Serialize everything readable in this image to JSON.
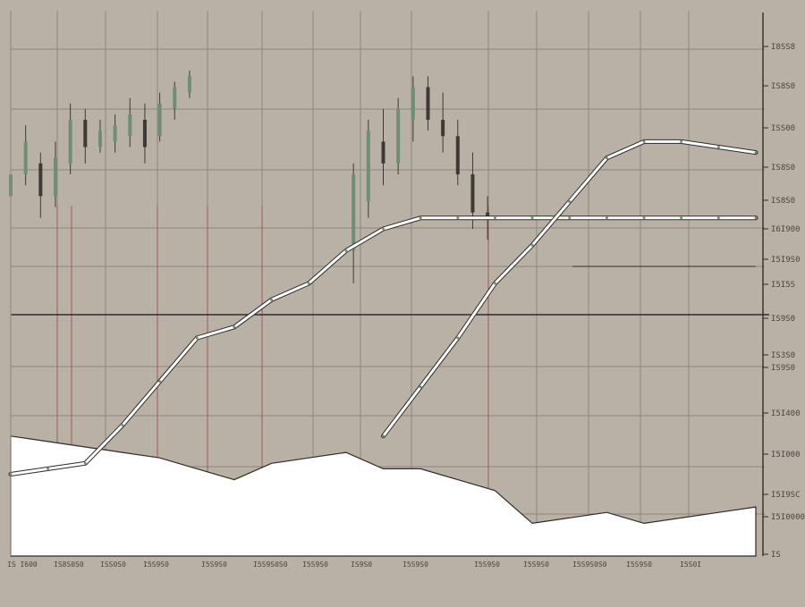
{
  "colors": {
    "background": "#b9b1a6",
    "grid": "#8f877d",
    "red_grid": "#9c5a55",
    "candle": "#3d3a36",
    "candle_up": "#6e8f73",
    "trend_line": "#ffffff",
    "trend_outline": "#2f2c29",
    "green_line": "#6e8f73",
    "area_fill": "#ffffff",
    "axis": "#2f2c29"
  },
  "chart_data": {
    "type": "line",
    "title": "",
    "xlabel": "",
    "ylabel": "",
    "grid": true,
    "legend": "none",
    "y_tick_labels": [
      "I8SS8",
      "IS8S0",
      "ISS00",
      "IS8S0",
      "IS8S0",
      "I6I900",
      "I5I9S0",
      "I5I5S",
      "IS9S0",
      "IS3S0",
      "IS9S0",
      "I5I400",
      "I5I000",
      "I5I9SC",
      "I5I0000",
      "IS"
    ],
    "x_tick_labels": [
      "IS I600",
      "IS8S0S0",
      "ISS0S0",
      "I5S9S0",
      "I5S9S0",
      "I5S9S0S0",
      "I5S9S0",
      "IS9S0",
      "I5S9S0",
      "I5S9S0",
      "I5S9S0",
      "I5S9S0S0",
      "I5S9S0",
      "I5S0I"
    ],
    "x": [
      0,
      5,
      10,
      15,
      20,
      25,
      30,
      35,
      40,
      45,
      50,
      55,
      60,
      65,
      70,
      75,
      80,
      85,
      90,
      95,
      100
    ],
    "series": [
      {
        "values": [
          15,
          16,
          17,
          24,
          32,
          40,
          42,
          47,
          50,
          56,
          60,
          62,
          62,
          62,
          62,
          62,
          62,
          62,
          62,
          62,
          62
        ]
      },
      {
        "values": [
          null,
          null,
          null,
          null,
          null,
          null,
          null,
          null,
          null,
          null,
          22,
          31,
          40,
          50,
          57,
          65,
          73,
          76,
          76,
          75,
          74
        ]
      },
      {
        "values": [
          22,
          21,
          20,
          19,
          18,
          16,
          14,
          17,
          18,
          19,
          16,
          16,
          14,
          12,
          6,
          7,
          8,
          6,
          7,
          8,
          9
        ]
      }
    ],
    "candles": [
      {
        "x": 0,
        "high": 72,
        "low": 64,
        "open": 66,
        "close": 70
      },
      {
        "x": 2,
        "high": 79,
        "low": 68,
        "open": 70,
        "close": 76
      },
      {
        "x": 4,
        "high": 74,
        "low": 62,
        "open": 72,
        "close": 66
      },
      {
        "x": 6,
        "high": 76,
        "low": 64,
        "open": 66,
        "close": 73
      },
      {
        "x": 8,
        "high": 83,
        "low": 70,
        "open": 72,
        "close": 80
      },
      {
        "x": 10,
        "high": 82,
        "low": 72,
        "open": 80,
        "close": 75
      },
      {
        "x": 12,
        "high": 80,
        "low": 74,
        "open": 75,
        "close": 78
      },
      {
        "x": 14,
        "high": 81,
        "low": 74,
        "open": 76,
        "close": 79
      },
      {
        "x": 16,
        "high": 84,
        "low": 75,
        "open": 77,
        "close": 81
      },
      {
        "x": 18,
        "high": 83,
        "low": 72,
        "open": 80,
        "close": 75
      },
      {
        "x": 20,
        "high": 85,
        "low": 76,
        "open": 77,
        "close": 83
      },
      {
        "x": 22,
        "high": 87,
        "low": 80,
        "open": 82,
        "close": 86
      },
      {
        "x": 24,
        "high": 89,
        "low": 84,
        "open": 85,
        "close": 88
      },
      {
        "x": 46,
        "high": 72,
        "low": 50,
        "open": 56,
        "close": 70
      },
      {
        "x": 48,
        "high": 80,
        "low": 62,
        "open": 65,
        "close": 78
      },
      {
        "x": 50,
        "high": 82,
        "low": 68,
        "open": 76,
        "close": 72
      },
      {
        "x": 52,
        "high": 84,
        "low": 70,
        "open": 72,
        "close": 82
      },
      {
        "x": 54,
        "high": 88,
        "low": 76,
        "open": 80,
        "close": 86
      },
      {
        "x": 56,
        "high": 88,
        "low": 78,
        "open": 86,
        "close": 80
      },
      {
        "x": 58,
        "high": 85,
        "low": 74,
        "open": 80,
        "close": 77
      },
      {
        "x": 60,
        "high": 80,
        "low": 68,
        "open": 77,
        "close": 70
      },
      {
        "x": 62,
        "high": 74,
        "low": 60,
        "open": 70,
        "close": 63
      },
      {
        "x": 64,
        "high": 66,
        "low": 58,
        "open": 63,
        "close": 62
      }
    ]
  }
}
